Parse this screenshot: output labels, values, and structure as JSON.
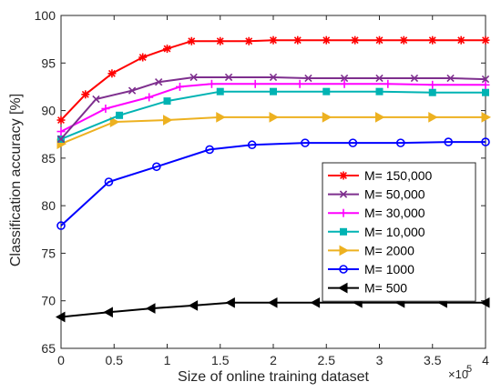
{
  "chart_data": {
    "type": "line",
    "xlabel": "Size of online training dataset",
    "ylabel": "Classification accuracy [%]",
    "x_multiplier_label": "×10",
    "x_multiplier_exp": "5",
    "xlim": [
      0,
      4
    ],
    "ylim": [
      65,
      100
    ],
    "xticks": [
      "0",
      "0.5",
      "1",
      "1.5",
      "2",
      "2.5",
      "3",
      "3.5",
      "4"
    ],
    "yticks": [
      "65",
      "70",
      "75",
      "80",
      "85",
      "90",
      "95",
      "100"
    ],
    "grid": false,
    "legend_position": "right",
    "series": [
      {
        "name": "M= 150,000",
        "color": "#ff0000",
        "marker": "star",
        "x": [
          0,
          0.23,
          0.48,
          0.77,
          1.0,
          1.23,
          1.5,
          1.77,
          2.0,
          2.23,
          2.5,
          2.77,
          3.0,
          3.23,
          3.5,
          3.77,
          4.0
        ],
        "y": [
          89.0,
          91.7,
          93.9,
          95.6,
          96.5,
          97.3,
          97.3,
          97.3,
          97.4,
          97.4,
          97.4,
          97.4,
          97.4,
          97.4,
          97.4,
          97.4,
          97.4
        ]
      },
      {
        "name": "M= 50,000",
        "color": "#7e2f8e",
        "marker": "x",
        "x": [
          0,
          0.33,
          0.67,
          0.92,
          1.25,
          1.58,
          2.0,
          2.33,
          2.67,
          3.0,
          3.33,
          3.67,
          4.0
        ],
        "y": [
          87.0,
          91.2,
          92.1,
          93.0,
          93.5,
          93.5,
          93.5,
          93.4,
          93.4,
          93.4,
          93.4,
          93.4,
          93.3
        ]
      },
      {
        "name": "M= 30,000",
        "color": "#ff00ff",
        "marker": "plus",
        "x": [
          0,
          0.42,
          0.83,
          1.12,
          1.42,
          1.83,
          2.25,
          2.67,
          3.08,
          3.5,
          4.0
        ],
        "y": [
          87.8,
          90.2,
          91.4,
          92.5,
          92.8,
          92.8,
          92.8,
          92.8,
          92.8,
          92.7,
          92.7
        ],
        "y_comment": ""
      },
      {
        "name": "M= 10,000",
        "color": "#00b3b3",
        "marker": "square",
        "x": [
          0,
          0.55,
          1.0,
          1.5,
          2.0,
          2.5,
          3.0,
          3.5,
          4.0
        ],
        "y": [
          87.0,
          89.5,
          91.0,
          92.0,
          92.0,
          92.0,
          92.0,
          91.9,
          91.9
        ]
      },
      {
        "name": "M= 2000",
        "color": "#edb120",
        "marker": "triangle-right",
        "x": [
          0,
          0.5,
          1.0,
          1.5,
          2.0,
          2.5,
          3.0,
          3.5,
          4.0
        ],
        "y": [
          86.5,
          88.8,
          89.0,
          89.3,
          89.3,
          89.3,
          89.3,
          89.3,
          89.3
        ]
      },
      {
        "name": "M= 1000",
        "color": "#0000ff",
        "marker": "circle",
        "x": [
          0,
          0.45,
          0.9,
          1.4,
          1.8,
          2.3,
          2.75,
          3.2,
          3.65,
          4.0
        ],
        "y": [
          77.9,
          82.5,
          84.1,
          85.9,
          86.4,
          86.6,
          86.6,
          86.6,
          86.7,
          86.7
        ]
      },
      {
        "name": "M= 500",
        "color": "#000000",
        "marker": "triangle-left",
        "x": [
          0,
          0.45,
          0.85,
          1.25,
          1.6,
          2.0,
          2.4,
          2.8,
          3.2,
          3.6,
          4.0
        ],
        "y": [
          68.3,
          68.8,
          69.2,
          69.5,
          69.8,
          69.8,
          69.8,
          69.8,
          69.8,
          69.8,
          69.8
        ]
      }
    ]
  }
}
